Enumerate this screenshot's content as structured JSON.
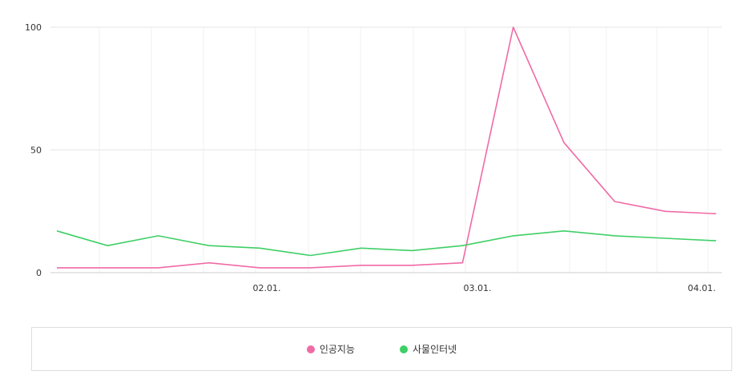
{
  "chart_data": {
    "type": "line",
    "title": "",
    "xlabel": "",
    "ylabel": "",
    "ylim": [
      0,
      100
    ],
    "yticks": [
      0,
      50,
      100
    ],
    "x_ticks": [
      "02.01.",
      "03.01.",
      "04.01."
    ],
    "grid": true,
    "legend_position": "bottom",
    "series": [
      {
        "name": "인공지능",
        "color": "#f06aa5",
        "values": [
          2,
          2,
          2,
          4,
          2,
          2,
          3,
          3,
          4,
          100,
          53,
          29,
          25,
          24
        ]
      },
      {
        "name": "사물인터넷",
        "color": "#3ecf66",
        "values": [
          17,
          11,
          15,
          11,
          10,
          7,
          10,
          9,
          11,
          15,
          17,
          15,
          14,
          13
        ]
      }
    ]
  }
}
